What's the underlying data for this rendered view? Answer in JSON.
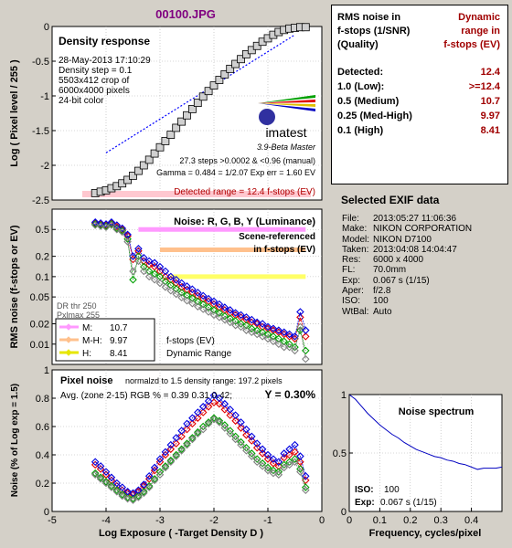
{
  "file_title": "00100.JPG",
  "chart_data": [
    {
      "type": "line",
      "title": "Density response",
      "ylabel": "Log ( Pixel level / 255 )",
      "ylim": [
        -2.5,
        0
      ],
      "xlim": [
        -5,
        0
      ],
      "yticks": [
        "0",
        "-0.5",
        "-1",
        "-1.5",
        "-2",
        "-2.5"
      ],
      "yticks_v": [
        0,
        -0.5,
        -1,
        -1.5,
        -2,
        -2.5
      ],
      "info_lines": [
        "28-May-2013 17:10:29",
        "Density step = 0.1",
        "5503x412 crop of",
        "6000x4000 pixels",
        "24-bit color"
      ],
      "steps_line": "27.3 steps >0.0002 & <0.96 (manual)",
      "gamma_line": "Gamma = 0.484 = 1/2.07  Exp err = 1.60 EV",
      "detected_range": "Detected range = 12.4 f-stops (EV)",
      "brand": "imatest",
      "brand_version": "3.9-Beta  Master",
      "x": [
        -4.2,
        -4.1,
        -4.0,
        -3.9,
        -3.8,
        -3.7,
        -3.6,
        -3.5,
        -3.4,
        -3.3,
        -3.2,
        -3.1,
        -3.0,
        -2.9,
        -2.8,
        -2.7,
        -2.6,
        -2.5,
        -2.4,
        -2.3,
        -2.2,
        -2.1,
        -2.0,
        -1.9,
        -1.8,
        -1.7,
        -1.6,
        -1.5,
        -1.4,
        -1.3,
        -1.2,
        -1.1,
        -1.0,
        -0.9,
        -0.8,
        -0.7,
        -0.6,
        -0.5,
        -0.4,
        -0.3
      ],
      "y": [
        -2.4,
        -2.38,
        -2.36,
        -2.33,
        -2.3,
        -2.26,
        -2.21,
        -2.15,
        -2.08,
        -2.0,
        -1.92,
        -1.83,
        -1.74,
        -1.65,
        -1.56,
        -1.46,
        -1.37,
        -1.28,
        -1.19,
        -1.1,
        -1.01,
        -0.93,
        -0.85,
        -0.77,
        -0.69,
        -0.61,
        -0.54,
        -0.47,
        -0.4,
        -0.34,
        -0.28,
        -0.22,
        -0.17,
        -0.12,
        -0.08,
        -0.05,
        -0.03,
        -0.02,
        -0.01,
        -0.01
      ],
      "fit_line": {
        "x": [
          -4.0,
          -0.5
        ],
        "y": [
          -1.82,
          -0.12
        ]
      }
    },
    {
      "type": "line",
      "title": "Noise: R, G, B, Y (Luminance)",
      "subtitle_1": "Scene-referenced",
      "subtitle_2": "in f-stops (EV)",
      "ylabel": "RMS noise (f-stops or EV)",
      "y_scale": "log",
      "ylim": [
        0.005,
        1
      ],
      "yticks": [
        "0.5",
        "0.2",
        "0.1",
        "0.05",
        "0.02",
        "0.01"
      ],
      "yticks_v": [
        0.5,
        0.2,
        0.1,
        0.05,
        0.02,
        0.01
      ],
      "dr_thr": "DR thr 250",
      "pxl_max": "Pxlmax 255",
      "legend": [
        {
          "label": "M:",
          "value": "10.7",
          "color": "#ff99ff"
        },
        {
          "label": "M-H:",
          "value": "9.97",
          "color": "#ffc08c"
        },
        {
          "label": "H:",
          "value": "8.41",
          "color": "#e6e600"
        }
      ],
      "fstops_label": "f-stops (EV)",
      "dr_label": "Dynamic Range",
      "bands": [
        {
          "x0": -3.4,
          "x1": -0.3,
          "y": 0.5,
          "color": "#ff99ff"
        },
        {
          "x0": -3.0,
          "x1": -0.3,
          "y": 0.25,
          "color": "#ffc08c"
        },
        {
          "x0": -2.8,
          "x1": -0.3,
          "y": 0.1,
          "color": "#ffff66"
        }
      ],
      "x": [
        -4.2,
        -4.1,
        -4.0,
        -3.9,
        -3.8,
        -3.7,
        -3.6,
        -3.5,
        -3.4,
        -3.3,
        -3.2,
        -3.1,
        -3.0,
        -2.9,
        -2.8,
        -2.7,
        -2.6,
        -2.5,
        -2.4,
        -2.3,
        -2.2,
        -2.1,
        -2.0,
        -1.9,
        -1.8,
        -1.7,
        -1.6,
        -1.5,
        -1.4,
        -1.3,
        -1.2,
        -1.1,
        -1.0,
        -0.9,
        -0.8,
        -0.7,
        -0.6,
        -0.5,
        -0.4,
        -0.3
      ],
      "series": [
        {
          "name": "R",
          "color": "#e00000",
          "values": [
            0.62,
            0.6,
            0.58,
            0.62,
            0.55,
            0.5,
            0.4,
            0.18,
            0.24,
            0.17,
            0.15,
            0.14,
            0.12,
            0.1,
            0.09,
            0.08,
            0.07,
            0.064,
            0.058,
            0.052,
            0.047,
            0.043,
            0.039,
            0.035,
            0.032,
            0.029,
            0.027,
            0.025,
            0.023,
            0.021,
            0.02,
            0.018,
            0.017,
            0.016,
            0.015,
            0.014,
            0.013,
            0.012,
            0.025,
            0.013
          ]
        },
        {
          "name": "G",
          "color": "#00a000",
          "values": [
            0.6,
            0.58,
            0.56,
            0.6,
            0.52,
            0.48,
            0.36,
            0.09,
            0.2,
            0.14,
            0.12,
            0.11,
            0.1,
            0.085,
            0.075,
            0.066,
            0.058,
            0.053,
            0.048,
            0.043,
            0.039,
            0.035,
            0.032,
            0.029,
            0.026,
            0.024,
            0.022,
            0.02,
            0.019,
            0.017,
            0.016,
            0.015,
            0.014,
            0.013,
            0.012,
            0.011,
            0.01,
            0.009,
            0.016,
            0.008
          ]
        },
        {
          "name": "B",
          "color": "#0000e0",
          "values": [
            0.64,
            0.62,
            0.6,
            0.64,
            0.58,
            0.52,
            0.42,
            0.2,
            0.26,
            0.19,
            0.17,
            0.16,
            0.14,
            0.12,
            0.1,
            0.09,
            0.08,
            0.072,
            0.065,
            0.058,
            0.052,
            0.047,
            0.043,
            0.039,
            0.035,
            0.032,
            0.029,
            0.027,
            0.025,
            0.023,
            0.021,
            0.02,
            0.018,
            0.017,
            0.016,
            0.015,
            0.014,
            0.013,
            0.03,
            0.016
          ]
        },
        {
          "name": "Y",
          "color": "#808080",
          "values": [
            0.58,
            0.56,
            0.54,
            0.58,
            0.5,
            0.46,
            0.33,
            0.12,
            0.17,
            0.12,
            0.1,
            0.09,
            0.08,
            0.07,
            0.062,
            0.055,
            0.049,
            0.044,
            0.04,
            0.036,
            0.033,
            0.03,
            0.027,
            0.025,
            0.023,
            0.021,
            0.019,
            0.018,
            0.016,
            0.015,
            0.014,
            0.013,
            0.012,
            0.011,
            0.01,
            0.009,
            0.009,
            0.008,
            0.018,
            0.006
          ]
        }
      ]
    },
    {
      "type": "line",
      "title": "Pixel noise",
      "subtitle": "normalzd to 1.5 density range: 197.2 pixels",
      "avg_line": "Avg. (zone 2-15) RGB % = 0.39  0.31  0.42;",
      "y_value": "Y = 0.30%",
      "ylabel": "Noise (% of Log exp = 1.5)",
      "xlabel": "Log Exposure ( -Target Density D )",
      "xlim": [
        -5,
        0
      ],
      "ylim": [
        0,
        1
      ],
      "xticks": [
        "-5",
        "-4",
        "-3",
        "-2",
        "-1",
        "0"
      ],
      "xticks_v": [
        -5,
        -4,
        -3,
        -2,
        -1,
        0
      ],
      "yticks": [
        "1",
        "0.8",
        "0.6",
        "0.4",
        "0.2",
        "0"
      ],
      "yticks_v": [
        1,
        0.8,
        0.6,
        0.4,
        0.2,
        0
      ],
      "x": [
        -4.2,
        -4.1,
        -4.0,
        -3.9,
        -3.8,
        -3.7,
        -3.6,
        -3.5,
        -3.4,
        -3.3,
        -3.2,
        -3.1,
        -3.0,
        -2.9,
        -2.8,
        -2.7,
        -2.6,
        -2.5,
        -2.4,
        -2.3,
        -2.2,
        -2.1,
        -2.0,
        -1.9,
        -1.8,
        -1.7,
        -1.6,
        -1.5,
        -1.4,
        -1.3,
        -1.2,
        -1.1,
        -1.0,
        -0.9,
        -0.8,
        -0.7,
        -0.6,
        -0.5,
        -0.4,
        -0.3
      ],
      "series": [
        {
          "name": "R",
          "color": "#e00000",
          "values": [
            0.33,
            0.3,
            0.26,
            0.22,
            0.18,
            0.15,
            0.13,
            0.12,
            0.14,
            0.18,
            0.23,
            0.29,
            0.35,
            0.4,
            0.44,
            0.48,
            0.53,
            0.58,
            0.62,
            0.66,
            0.7,
            0.74,
            0.77,
            0.76,
            0.72,
            0.68,
            0.64,
            0.59,
            0.54,
            0.5,
            0.45,
            0.41,
            0.37,
            0.34,
            0.32,
            0.38,
            0.4,
            0.42,
            0.35,
            0.22
          ]
        },
        {
          "name": "G",
          "color": "#00a000",
          "values": [
            0.27,
            0.24,
            0.21,
            0.18,
            0.15,
            0.12,
            0.1,
            0.09,
            0.11,
            0.14,
            0.18,
            0.23,
            0.28,
            0.32,
            0.36,
            0.4,
            0.44,
            0.48,
            0.52,
            0.56,
            0.6,
            0.63,
            0.66,
            0.64,
            0.61,
            0.57,
            0.53,
            0.49,
            0.45,
            0.41,
            0.37,
            0.34,
            0.31,
            0.29,
            0.28,
            0.33,
            0.35,
            0.37,
            0.3,
            0.17
          ]
        },
        {
          "name": "B",
          "color": "#0000e0",
          "values": [
            0.35,
            0.32,
            0.28,
            0.24,
            0.2,
            0.17,
            0.14,
            0.13,
            0.15,
            0.19,
            0.25,
            0.31,
            0.37,
            0.42,
            0.47,
            0.52,
            0.57,
            0.62,
            0.66,
            0.7,
            0.74,
            0.78,
            0.82,
            0.8,
            0.76,
            0.72,
            0.68,
            0.63,
            0.58,
            0.53,
            0.48,
            0.44,
            0.4,
            0.37,
            0.35,
            0.41,
            0.44,
            0.47,
            0.39,
            0.25
          ]
        },
        {
          "name": "Y",
          "color": "#808080",
          "values": [
            0.26,
            0.23,
            0.2,
            0.17,
            0.14,
            0.11,
            0.09,
            0.08,
            0.1,
            0.13,
            0.17,
            0.22,
            0.26,
            0.31,
            0.35,
            0.39,
            0.43,
            0.47,
            0.51,
            0.55,
            0.58,
            0.62,
            0.65,
            0.63,
            0.59,
            0.55,
            0.51,
            0.47,
            0.43,
            0.39,
            0.35,
            0.32,
            0.29,
            0.27,
            0.26,
            0.31,
            0.33,
            0.35,
            0.28,
            0.15
          ]
        }
      ]
    },
    {
      "type": "line",
      "title": "Noise spectrum",
      "xlabel": "Frequency, cycles/pixel",
      "xlim": [
        0,
        0.5
      ],
      "ylim": [
        0,
        1
      ],
      "xticks": [
        "0",
        "0.1",
        "0.2",
        "0.3",
        "0.4"
      ],
      "xticks_v": [
        0,
        0.1,
        0.2,
        0.3,
        0.4
      ],
      "yticks": [
        "1",
        "0.5",
        "0"
      ],
      "yticks_v": [
        1,
        0.5,
        0
      ],
      "iso_label": "ISO:",
      "iso_value": "100",
      "exp_label": "Exp:",
      "exp_value": "0.067 s   (1/15)",
      "series": [
        {
          "name": "",
          "color": "#0000c0",
          "x": [
            0.0,
            0.02,
            0.04,
            0.06,
            0.08,
            0.1,
            0.12,
            0.14,
            0.16,
            0.18,
            0.2,
            0.22,
            0.24,
            0.26,
            0.28,
            0.3,
            0.32,
            0.34,
            0.36,
            0.38,
            0.4,
            0.42,
            0.44,
            0.46,
            0.48,
            0.5
          ],
          "values": [
            1.0,
            0.96,
            0.9,
            0.84,
            0.79,
            0.74,
            0.7,
            0.66,
            0.63,
            0.59,
            0.56,
            0.53,
            0.51,
            0.49,
            0.47,
            0.46,
            0.44,
            0.43,
            0.41,
            0.4,
            0.38,
            0.36,
            0.37,
            0.37,
            0.37,
            0.38
          ]
        }
      ]
    }
  ],
  "rms_table": {
    "header_left": [
      "RMS noise in",
      "f-stops (1/SNR)",
      "(Quality)"
    ],
    "header_right": [
      "Dynamic",
      "range in",
      "f-stops (EV)"
    ],
    "rows": [
      {
        "label": "Detected:",
        "value": "12.4"
      },
      {
        "label": "1.0  (Low):",
        "value": ">=12.4"
      },
      {
        "label": "0.5  (Medium)",
        "value": "10.7"
      },
      {
        "label": "0.25 (Med-High)",
        "value": "9.97"
      },
      {
        "label": "0.1  (High)",
        "value": "8.41"
      }
    ]
  },
  "exif": {
    "title": "Selected EXIF data",
    "rows": [
      {
        "label": "File:",
        "value": "2013:05:27 11:06:36"
      },
      {
        "label": "Make:",
        "value": "NIKON CORPORATION"
      },
      {
        "label": "Model:",
        "value": "NIKON D7100"
      },
      {
        "label": "Taken:",
        "value": "2013:04:08 14:04:47"
      },
      {
        "label": "Res:",
        "value": "6000 x 4000"
      },
      {
        "label": "FL:",
        "value": "70.0mm"
      },
      {
        "label": "Exp:",
        "value": "0.067 s  (1/15)"
      },
      {
        "label": "Aper:",
        "value": "f/2.8"
      },
      {
        "label": "ISO:",
        "value": "100"
      },
      {
        "label": "WtBal:",
        "value": "Auto"
      }
    ]
  }
}
